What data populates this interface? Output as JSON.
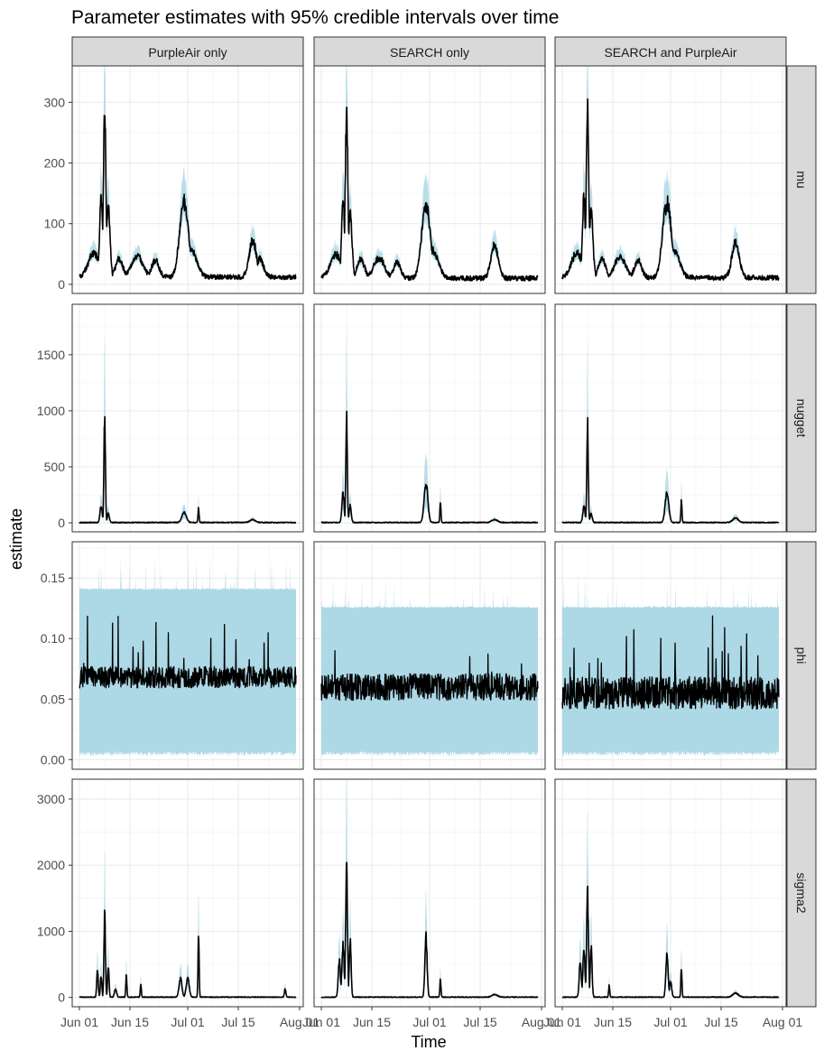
{
  "chart_data": {
    "type": "line",
    "title": "Parameter estimates with 95% credible intervals over time",
    "xlabel": "Time",
    "ylabel": "estimate",
    "x_range": [
      "2024-05-30",
      "2024-08-02"
    ],
    "x_ticks": [
      {
        "date": "2024-06-01",
        "label": "Jun 01"
      },
      {
        "date": "2024-06-15",
        "label": "Jun 15"
      },
      {
        "date": "2024-07-01",
        "label": "Jul 01"
      },
      {
        "date": "2024-07-15",
        "label": "Jul 15"
      },
      {
        "date": "2024-08-01",
        "label": "Aug 01"
      }
    ],
    "columns": [
      "PurpleAir only",
      "SEARCH only",
      "SEARCH and PurpleAir"
    ],
    "rows": [
      {
        "name": "mu",
        "ylim": [
          -15,
          360
        ],
        "yticks": [
          0,
          100,
          200,
          300
        ],
        "ytick_labels": [
          "0",
          "100",
          "200",
          "300"
        ]
      },
      {
        "name": "nugget",
        "ylim": [
          -80,
          1950
        ],
        "yticks": [
          0,
          500,
          1000,
          1500
        ],
        "ytick_labels": [
          "0",
          "500",
          "1000",
          "1500"
        ]
      },
      {
        "name": "phi",
        "ylim": [
          -0.008,
          0.18
        ],
        "yticks": [
          0,
          0.05,
          0.1,
          0.15
        ],
        "ytick_labels": [
          "0.00",
          "0.05",
          "0.10",
          "0.15"
        ]
      },
      {
        "name": "sigma2",
        "ylim": [
          -140,
          3300
        ],
        "yticks": [
          0,
          1000,
          2000,
          3000
        ],
        "ytick_labels": [
          "0",
          "1000",
          "2000",
          "3000"
        ]
      }
    ],
    "band_color": "#add8e6",
    "line_color": "#000000",
    "grid": true,
    "series": {
      "mu": {
        "PurpleAir only": {
          "baseline": 12,
          "noise": 4,
          "rel_band": 0.18,
          "events": [
            {
              "date": "2024-06-05",
              "value": 40,
              "width": 1.5
            },
            {
              "date": "2024-06-07",
              "value": 132,
              "width": 0.4
            },
            {
              "date": "2024-06-08",
              "value": 272,
              "width": 0.35
            },
            {
              "date": "2024-06-09",
              "value": 110,
              "width": 0.5
            },
            {
              "date": "2024-06-12",
              "value": 30,
              "width": 1.0
            },
            {
              "date": "2024-06-17",
              "value": 35,
              "width": 1.5
            },
            {
              "date": "2024-06-22",
              "value": 28,
              "width": 1.0
            },
            {
              "date": "2024-06-30",
              "value": 125,
              "width": 1.2
            },
            {
              "date": "2024-07-02",
              "value": 45,
              "width": 1.5
            },
            {
              "date": "2024-07-19",
              "value": 60,
              "width": 1.0
            },
            {
              "date": "2024-07-21",
              "value": 30,
              "width": 1.0
            }
          ]
        },
        "SEARCH only": {
          "baseline": 10,
          "noise": 4,
          "rel_band": 0.2,
          "events": [
            {
              "date": "2024-06-05",
              "value": 40,
              "width": 1.5
            },
            {
              "date": "2024-06-07",
              "value": 130,
              "width": 0.4
            },
            {
              "date": "2024-06-08",
              "value": 282,
              "width": 0.35
            },
            {
              "date": "2024-06-09",
              "value": 108,
              "width": 0.5
            },
            {
              "date": "2024-06-12",
              "value": 30,
              "width": 1.0
            },
            {
              "date": "2024-06-17",
              "value": 33,
              "width": 1.5
            },
            {
              "date": "2024-06-22",
              "value": 26,
              "width": 1.0
            },
            {
              "date": "2024-06-30",
              "value": 120,
              "width": 1.2
            },
            {
              "date": "2024-07-02",
              "value": 45,
              "width": 1.5
            },
            {
              "date": "2024-07-19",
              "value": 55,
              "width": 1.0
            }
          ]
        },
        "SEARCH and PurpleAir": {
          "baseline": 11,
          "noise": 4,
          "rel_band": 0.19,
          "events": [
            {
              "date": "2024-06-05",
              "value": 40,
              "width": 1.5
            },
            {
              "date": "2024-06-07",
              "value": 130,
              "width": 0.4
            },
            {
              "date": "2024-06-08",
              "value": 280,
              "width": 0.35
            },
            {
              "date": "2024-06-09",
              "value": 110,
              "width": 0.5
            },
            {
              "date": "2024-06-12",
              "value": 30,
              "width": 1.0
            },
            {
              "date": "2024-06-17",
              "value": 35,
              "width": 1.5
            },
            {
              "date": "2024-06-22",
              "value": 28,
              "width": 1.0
            },
            {
              "date": "2024-06-30",
              "value": 123,
              "width": 1.2
            },
            {
              "date": "2024-07-02",
              "value": 45,
              "width": 1.5
            },
            {
              "date": "2024-07-19",
              "value": 58,
              "width": 1.0
            }
          ]
        }
      },
      "nugget": {
        "PurpleAir only": {
          "baseline": 3,
          "noise": 4,
          "rel_band": 0.6,
          "events": [
            {
              "date": "2024-06-07",
              "value": 150,
              "width": 0.3
            },
            {
              "date": "2024-06-08",
              "value": 975,
              "width": 0.2
            },
            {
              "date": "2024-06-09",
              "value": 80,
              "width": 0.3
            },
            {
              "date": "2024-06-30",
              "value": 90,
              "width": 0.6
            },
            {
              "date": "2024-07-04",
              "value": 125,
              "width": 0.15
            },
            {
              "date": "2024-07-19",
              "value": 25,
              "width": 0.8
            }
          ]
        },
        "SEARCH only": {
          "baseline": 3,
          "noise": 4,
          "rel_band": 0.6,
          "events": [
            {
              "date": "2024-06-07",
              "value": 260,
              "width": 0.3
            },
            {
              "date": "2024-06-08",
              "value": 980,
              "width": 0.2
            },
            {
              "date": "2024-06-09",
              "value": 150,
              "width": 0.3
            },
            {
              "date": "2024-06-30",
              "value": 360,
              "width": 0.5
            },
            {
              "date": "2024-07-04",
              "value": 185,
              "width": 0.15
            },
            {
              "date": "2024-07-19",
              "value": 25,
              "width": 0.8
            }
          ]
        },
        "SEARCH and PurpleAir": {
          "baseline": 3,
          "noise": 4,
          "rel_band": 0.6,
          "events": [
            {
              "date": "2024-06-07",
              "value": 150,
              "width": 0.3
            },
            {
              "date": "2024-06-08",
              "value": 885,
              "width": 0.2
            },
            {
              "date": "2024-06-09",
              "value": 80,
              "width": 0.3
            },
            {
              "date": "2024-06-30",
              "value": 270,
              "width": 0.5
            },
            {
              "date": "2024-07-04",
              "value": 200,
              "width": 0.15
            },
            {
              "date": "2024-07-19",
              "value": 40,
              "width": 0.8
            }
          ]
        }
      },
      "phi": {
        "PurpleAir only": {
          "mean": 0.068,
          "noise": 0.004,
          "band": [
            0.003,
            0.14
          ],
          "spike_count": 30,
          "spike_max": 0.12
        },
        "SEARCH only": {
          "mean": 0.06,
          "noise": 0.005,
          "band": [
            0.003,
            0.125
          ],
          "spike_count": 8,
          "spike_max": 0.09
        },
        "SEARCH and PurpleAir": {
          "mean": 0.055,
          "noise": 0.006,
          "band": [
            0.003,
            0.125
          ],
          "spike_count": 22,
          "spike_max": 0.12
        }
      },
      "sigma2": {
        "PurpleAir only": {
          "baseline": 5,
          "noise": 6,
          "rel_band": 0.5,
          "events": [
            {
              "date": "2024-06-06",
              "value": 420,
              "width": 0.2
            },
            {
              "date": "2024-06-07",
              "value": 330,
              "width": 0.2
            },
            {
              "date": "2024-06-08",
              "value": 1290,
              "width": 0.2
            },
            {
              "date": "2024-06-09",
              "value": 480,
              "width": 0.2
            },
            {
              "date": "2024-06-11",
              "value": 120,
              "width": 0.3
            },
            {
              "date": "2024-06-14",
              "value": 340,
              "width": 0.15
            },
            {
              "date": "2024-06-18",
              "value": 200,
              "width": 0.15
            },
            {
              "date": "2024-06-29",
              "value": 280,
              "width": 0.4
            },
            {
              "date": "2024-07-01",
              "value": 300,
              "width": 0.4
            },
            {
              "date": "2024-07-04",
              "value": 970,
              "width": 0.15
            },
            {
              "date": "2024-07-28",
              "value": 130,
              "width": 0.2
            }
          ]
        },
        "SEARCH only": {
          "baseline": 5,
          "noise": 6,
          "rel_band": 0.5,
          "events": [
            {
              "date": "2024-06-06",
              "value": 560,
              "width": 0.3
            },
            {
              "date": "2024-06-07",
              "value": 800,
              "width": 0.3
            },
            {
              "date": "2024-06-08",
              "value": 1950,
              "width": 0.25
            },
            {
              "date": "2024-06-09",
              "value": 900,
              "width": 0.25
            },
            {
              "date": "2024-06-30",
              "value": 920,
              "width": 0.3
            },
            {
              "date": "2024-07-04",
              "value": 270,
              "width": 0.15
            },
            {
              "date": "2024-07-19",
              "value": 40,
              "width": 0.8
            }
          ]
        },
        "SEARCH and PurpleAir": {
          "baseline": 5,
          "noise": 6,
          "rel_band": 0.5,
          "events": [
            {
              "date": "2024-06-06",
              "value": 540,
              "width": 0.3
            },
            {
              "date": "2024-06-07",
              "value": 700,
              "width": 0.3
            },
            {
              "date": "2024-06-08",
              "value": 1550,
              "width": 0.25
            },
            {
              "date": "2024-06-09",
              "value": 750,
              "width": 0.25
            },
            {
              "date": "2024-06-14",
              "value": 180,
              "width": 0.15
            },
            {
              "date": "2024-06-30",
              "value": 680,
              "width": 0.3
            },
            {
              "date": "2024-07-01",
              "value": 240,
              "width": 0.3
            },
            {
              "date": "2024-07-04",
              "value": 460,
              "width": 0.15
            },
            {
              "date": "2024-07-19",
              "value": 60,
              "width": 0.8
            }
          ]
        }
      }
    }
  }
}
